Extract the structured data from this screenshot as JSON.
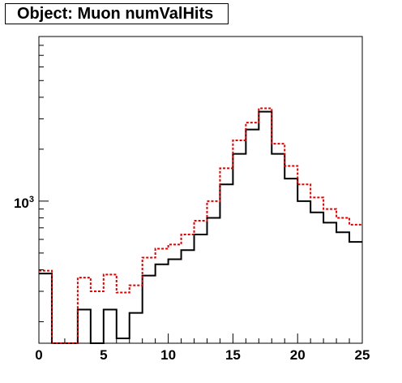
{
  "chart_data": {
    "type": "histogram-step",
    "title": "Object: Muon numValHits",
    "xlabel": "",
    "ylabel": "",
    "xlim": [
      0,
      25
    ],
    "ylog": true,
    "ylim": [
      150,
      9000
    ],
    "x_ticks": [
      "0",
      "5",
      "10",
      "15",
      "20",
      "25"
    ],
    "y_tick_labels": [
      {
        "base": "10",
        "exp": "3",
        "value": 1000
      }
    ],
    "bin_edges": [
      0,
      1,
      2,
      3,
      4,
      5,
      6,
      7,
      8,
      9,
      10,
      11,
      12,
      13,
      14,
      15,
      16,
      17,
      18,
      19,
      20,
      21,
      22,
      23,
      24,
      25
    ],
    "series": [
      {
        "style": "solid",
        "color": "#000000",
        "values": [
          380,
          150,
          150,
          235,
          150,
          235,
          160,
          225,
          370,
          430,
          460,
          520,
          640,
          800,
          1250,
          1880,
          2600,
          3300,
          1880,
          1350,
          1000,
          860,
          750,
          660,
          580
        ]
      },
      {
        "style": "dashed",
        "color": "#e00000",
        "values": [
          395,
          150,
          150,
          360,
          300,
          375,
          295,
          325,
          470,
          530,
          560,
          640,
          770,
          1000,
          1550,
          2250,
          2850,
          3450,
          2150,
          1600,
          1250,
          1050,
          900,
          800,
          730
        ]
      }
    ]
  }
}
